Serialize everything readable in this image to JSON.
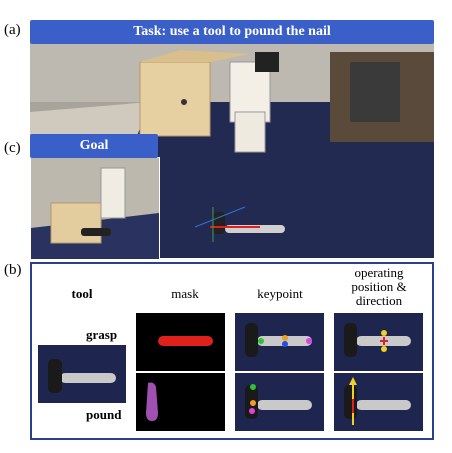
{
  "panel_a": {
    "label": "(a)",
    "task": "Task: use a tool to pound the nail"
  },
  "panel_c": {
    "label": "(c)",
    "goal": "Goal"
  },
  "panel_b": {
    "label": "(b)",
    "col_tool": "tool",
    "col_mask": "mask",
    "col_keypoint": "keypoint",
    "col_operating": "operating\nposition &\ndirection",
    "row_grasp": "grasp",
    "row_pound": "pound"
  },
  "colors": {
    "accent": "#3b5fc9",
    "frame": "#2b3f8c",
    "mask_grasp": "#e0201a",
    "mask_pound": "#a050b0"
  }
}
